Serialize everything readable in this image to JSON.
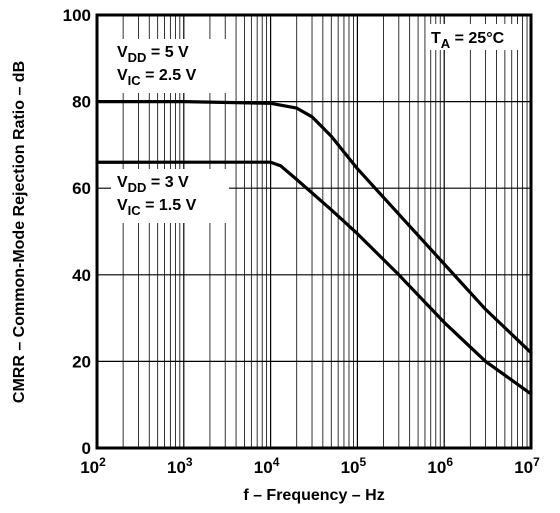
{
  "chart_data": {
    "type": "line",
    "title": "",
    "xlabel": "f – Frequency – Hz",
    "ylabel": "CMRR – Common-Mode Rejection Ratio – dB",
    "x_scale": "log",
    "xlim": [
      100,
      10000000
    ],
    "ylim": [
      0,
      100
    ],
    "grid": true,
    "x_tick_labels": [
      {
        "base": "10",
        "exp": "2"
      },
      {
        "base": "10",
        "exp": "3"
      },
      {
        "base": "10",
        "exp": "4"
      },
      {
        "base": "10",
        "exp": "5"
      },
      {
        "base": "10",
        "exp": "6"
      },
      {
        "base": "10",
        "exp": "7"
      }
    ],
    "y_ticks": [
      0,
      20,
      40,
      60,
      80,
      100
    ],
    "condition": {
      "main": "T",
      "sub": "A",
      "rest": " = 25°C"
    },
    "series": [
      {
        "label_lines": [
          {
            "main": "V",
            "sub": "DD",
            "rest": " = 5 V"
          },
          {
            "main": "V",
            "sub": "IC",
            "rest": " = 2.5 V"
          }
        ],
        "x": [
          100,
          1000,
          10000,
          20000,
          30000,
          50000,
          100000,
          300000,
          1000000,
          3000000,
          10000000
        ],
        "y": [
          80,
          80,
          79.6,
          78.5,
          76.5,
          72,
          64.5,
          54,
          42.5,
          32,
          22
        ]
      },
      {
        "label_lines": [
          {
            "main": "V",
            "sub": "DD",
            "rest": " = 3 V"
          },
          {
            "main": "V",
            "sub": "IC",
            "rest": " = 1.5 V"
          }
        ],
        "x": [
          100,
          1000,
          10000,
          13000,
          20000,
          50000,
          100000,
          300000,
          1000000,
          3000000,
          10000000
        ],
        "y": [
          66,
          66,
          66,
          65.2,
          62,
          55,
          49.5,
          40,
          29,
          20,
          12.5
        ]
      }
    ]
  }
}
